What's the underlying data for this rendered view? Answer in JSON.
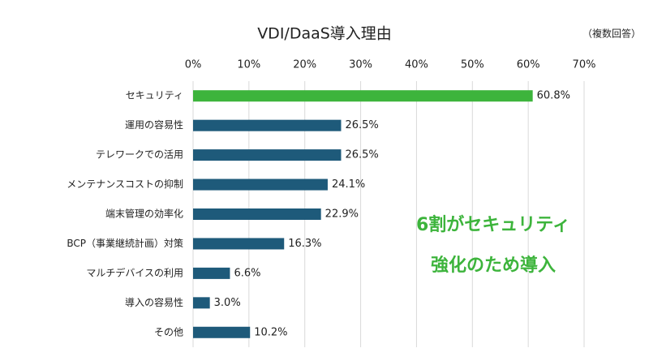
{
  "chart_data": {
    "type": "barh",
    "title": "VDI/DaaS導入理由",
    "subtitle": "（複数回答）",
    "categories": [
      "セキュリティ",
      "運用の容易性",
      "テレワークでの活用",
      "メンテナンスコストの抑制",
      "端末管理の効率化",
      "BCP（事業継続計画）対策",
      "マルチデバイスの利用",
      "導入の容易性",
      "その他"
    ],
    "values": [
      60.8,
      26.5,
      26.5,
      24.1,
      22.9,
      16.3,
      6.6,
      3.0,
      10.2
    ],
    "value_labels": [
      "60.8%",
      "26.5%",
      "26.5%",
      "24.1%",
      "22.9%",
      "16.3%",
      "6.6%",
      "3.0%",
      "10.2%"
    ],
    "colors": [
      "#3db43c",
      "#1e5a7a",
      "#1e5a7a",
      "#1e5a7a",
      "#1e5a7a",
      "#1e5a7a",
      "#1e5a7a",
      "#1e5a7a",
      "#1e5a7a"
    ],
    "xlim": [
      0,
      70
    ],
    "xticks": [
      {
        "value": 0,
        "label": "0%"
      },
      {
        "value": 10,
        "label": "10%"
      },
      {
        "value": 20,
        "label": "20%"
      },
      {
        "value": 30,
        "label": "30%"
      },
      {
        "value": 40,
        "label": "40%"
      },
      {
        "value": 50,
        "label": "50%"
      },
      {
        "value": 60,
        "label": "60%"
      },
      {
        "value": 70,
        "label": "70%"
      }
    ],
    "grid": true,
    "annotations": [
      "6割がセキュリティ",
      "強化のため導入"
    ],
    "annotation_color": "#3db43c"
  }
}
